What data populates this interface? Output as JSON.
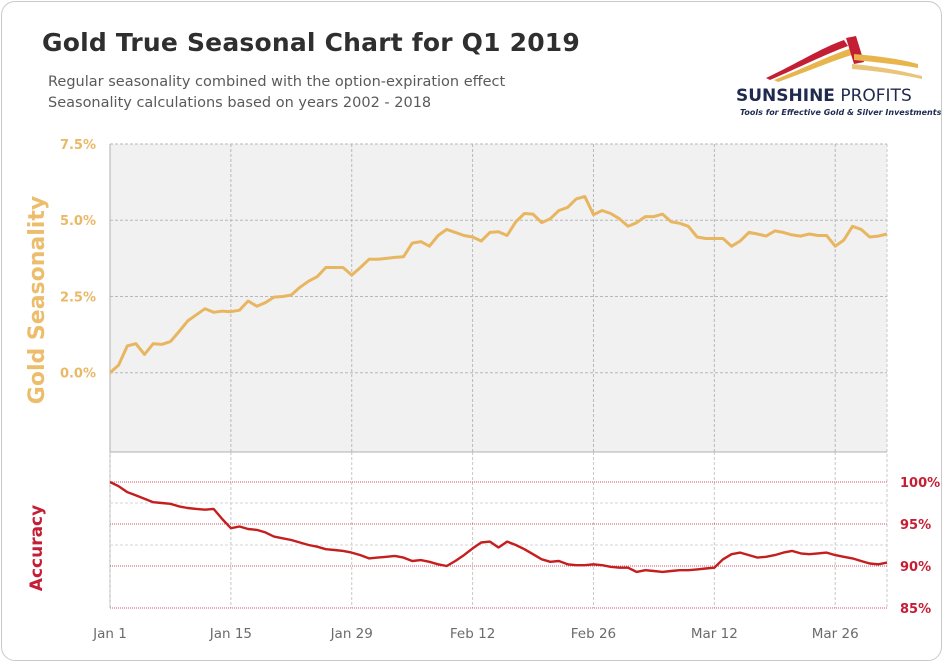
{
  "header": {
    "title": "Gold True Seasonal Chart for Q1 2019",
    "subtitle_1": "Regular seasonality combined with the option-expiration effect",
    "subtitle_2": "Seasonality calculations based on years 2002 - 2018"
  },
  "logo": {
    "name_bold": "SUNSHINE",
    "name_rest": " PROFITS",
    "tagline": "Tools for Effective Gold & Silver Investments",
    "colors": {
      "gold": "#e8b44c",
      "red": "#c41e35",
      "navy": "#1e2a4e"
    }
  },
  "colors": {
    "seasonality_line": "#e8b660",
    "accuracy_line": "#c41e1e",
    "plot_bg": "#f1f1f1",
    "grid": "#b5b5b5",
    "accuracy_grid": "#c41e35"
  },
  "chart_data": [
    {
      "type": "line",
      "title": "Gold True Seasonal Chart for Q1 2019",
      "ylabel": "Gold Seasonality",
      "x_ticks": [
        "Jan 1",
        "Jan 15",
        "Jan 29",
        "Feb 12",
        "Feb 26",
        "Mar 12",
        "Mar 26"
      ],
      "x_range": [
        0,
        90
      ],
      "y_ticks": [
        "0.0%",
        "2.5%",
        "5.0%",
        "7.5%"
      ],
      "ylim": [
        -2.6,
        7.5
      ],
      "grid": true,
      "x": [
        0,
        1,
        2,
        3,
        4,
        5,
        6,
        7,
        8,
        9,
        10,
        11,
        12,
        13,
        14,
        15,
        16,
        17,
        18,
        19,
        20,
        21,
        22,
        23,
        24,
        25,
        26,
        27,
        28,
        29,
        30,
        31,
        32,
        33,
        34,
        35,
        36,
        37,
        38,
        39,
        40,
        41,
        42,
        43,
        44,
        45,
        46,
        47,
        48,
        49,
        50,
        51,
        52,
        53,
        54,
        55,
        56,
        57,
        58,
        59,
        60,
        61,
        62,
        63,
        64,
        65,
        66,
        67,
        68,
        69,
        70,
        71,
        72,
        73,
        74,
        75,
        76,
        77,
        78,
        79,
        80,
        81,
        82,
        83,
        84,
        85,
        86,
        87,
        88,
        89,
        90
      ],
      "values": [
        0.0,
        0.25,
        0.88,
        0.95,
        0.6,
        0.95,
        0.93,
        1.02,
        1.35,
        1.7,
        1.9,
        2.1,
        1.98,
        2.02,
        2.0,
        2.05,
        2.35,
        2.18,
        2.3,
        2.48,
        2.5,
        2.55,
        2.8,
        3.0,
        3.15,
        3.45,
        3.45,
        3.45,
        3.2,
        3.45,
        3.72,
        3.72,
        3.75,
        3.78,
        3.8,
        4.25,
        4.3,
        4.15,
        4.5,
        4.7,
        4.6,
        4.5,
        4.45,
        4.32,
        4.6,
        4.62,
        4.5,
        4.95,
        5.22,
        5.2,
        4.92,
        5.05,
        5.32,
        5.42,
        5.7,
        5.78,
        5.18,
        5.32,
        5.22,
        5.05,
        4.8,
        4.92,
        5.12,
        5.12,
        5.2,
        4.95,
        4.9,
        4.8,
        4.45,
        4.4,
        4.4,
        4.4,
        4.15,
        4.32,
        4.6,
        4.55,
        4.48,
        4.65,
        4.6,
        4.52,
        4.48,
        4.55,
        4.5,
        4.5,
        4.15,
        4.35,
        4.8,
        4.7,
        4.45,
        4.48,
        4.55
      ]
    },
    {
      "type": "line",
      "ylabel": "Accuracy",
      "x_ticks": [
        "Jan 1",
        "Jan 15",
        "Jan 29",
        "Feb 12",
        "Feb 26",
        "Mar 12",
        "Mar 26"
      ],
      "x_range": [
        0,
        90
      ],
      "y_ticks": [
        "85%",
        "90%",
        "95%",
        "100%"
      ],
      "ylim": [
        85,
        100
      ],
      "grid": true,
      "x": [
        0,
        1,
        2,
        3,
        4,
        5,
        6,
        7,
        8,
        9,
        10,
        11,
        12,
        13,
        14,
        15,
        16,
        17,
        18,
        19,
        20,
        21,
        22,
        23,
        24,
        25,
        26,
        27,
        28,
        29,
        30,
        31,
        32,
        33,
        34,
        35,
        36,
        37,
        38,
        39,
        40,
        41,
        42,
        43,
        44,
        45,
        46,
        47,
        48,
        49,
        50,
        51,
        52,
        53,
        54,
        55,
        56,
        57,
        58,
        59,
        60,
        61,
        62,
        63,
        64,
        65,
        66,
        67,
        68,
        69,
        70,
        71,
        72,
        73,
        74,
        75,
        76,
        77,
        78,
        79,
        80,
        81,
        82,
        83,
        84,
        85,
        86,
        87,
        88,
        89,
        90
      ],
      "values": [
        100,
        99.5,
        98.8,
        98.4,
        98.0,
        97.6,
        97.5,
        97.4,
        97.1,
        96.9,
        96.8,
        96.7,
        96.8,
        95.6,
        94.5,
        94.7,
        94.4,
        94.3,
        94.0,
        93.5,
        93.3,
        93.1,
        92.8,
        92.5,
        92.3,
        92.0,
        91.9,
        91.8,
        91.6,
        91.3,
        90.9,
        91.0,
        91.1,
        91.2,
        91.0,
        90.6,
        90.7,
        90.5,
        90.2,
        90.0,
        90.6,
        91.3,
        92.1,
        92.8,
        92.9,
        92.2,
        92.9,
        92.5,
        92.0,
        91.4,
        90.8,
        90.5,
        90.6,
        90.2,
        90.1,
        90.1,
        90.2,
        90.1,
        89.9,
        89.8,
        89.8,
        89.3,
        89.5,
        89.4,
        89.3,
        89.4,
        89.5,
        89.5,
        89.6,
        89.7,
        89.8,
        90.8,
        91.4,
        91.6,
        91.3,
        91.0,
        91.1,
        91.3,
        91.6,
        91.8,
        91.5,
        91.4,
        91.5,
        91.6,
        91.3,
        91.1,
        90.9,
        90.6,
        90.3,
        90.2,
        90.4
      ]
    }
  ]
}
